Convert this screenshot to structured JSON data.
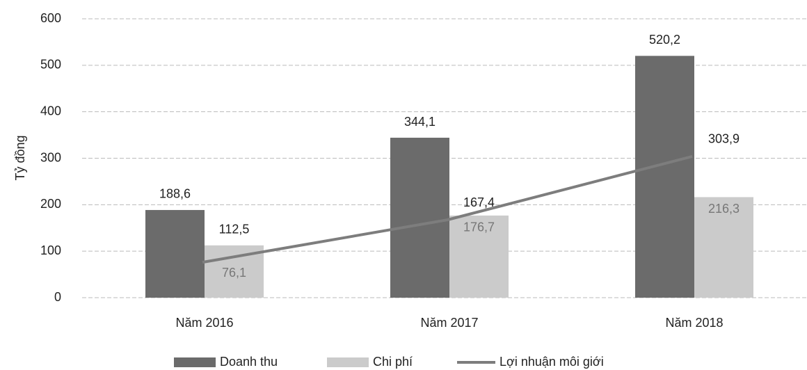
{
  "chart_data": {
    "type": "bar_line",
    "y_label": "Tỷ đồng",
    "categories": [
      "Năm 2016",
      "Năm 2017",
      "Năm 2018"
    ],
    "series": [
      {
        "name": "Doanh thu",
        "type": "bar",
        "color": "#6b6b6b",
        "values": [
          188.6,
          344.1,
          520.2
        ],
        "value_labels": [
          "188,6",
          "344,1",
          "520,2"
        ]
      },
      {
        "name": "Chi phí",
        "type": "bar",
        "color": "#cbcbcb",
        "values": [
          112.5,
          176.7,
          216.3
        ],
        "value_labels": [
          "112,5",
          "176,7",
          "216,3"
        ]
      },
      {
        "name": "Lợi nhuận môi giới",
        "type": "line",
        "color": "#7d7d7d",
        "values": [
          76.1,
          167.4,
          303.9
        ],
        "value_labels": [
          "76,1",
          "167,4",
          "303,9"
        ]
      }
    ],
    "ylim": [
      0,
      600
    ],
    "yticks": [
      0,
      100,
      200,
      300,
      400,
      500,
      600
    ],
    "grid": true
  }
}
